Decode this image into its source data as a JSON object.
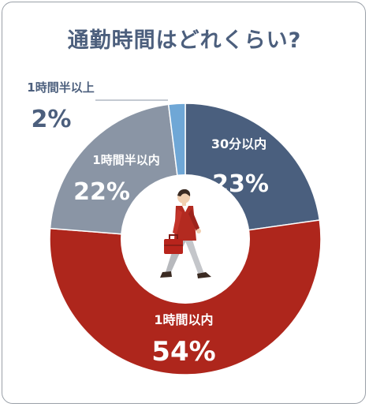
{
  "chart_data": {
    "type": "pie",
    "title": "通勤時間はどれくらい?",
    "series": [
      {
        "label": "30分以内",
        "percent_label": "23%",
        "value": 23,
        "color": "#4a5f7e"
      },
      {
        "label": "1時間以内",
        "percent_label": "54%",
        "value": 54,
        "color": "#ae261c"
      },
      {
        "label": "1時間半以内",
        "percent_label": "22%",
        "value": 22,
        "color": "#8a95a5"
      },
      {
        "label": "1時間半以上",
        "percent_label": "2%",
        "value": 2,
        "color": "#6fa7d6"
      }
    ],
    "style": "donut",
    "background": "#ffffff",
    "figure": "walking-businessman-with-briefcase"
  }
}
